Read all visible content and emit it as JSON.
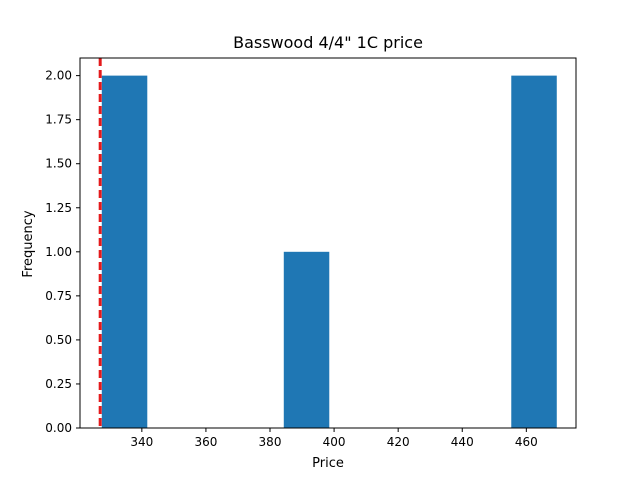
{
  "chart_data": {
    "type": "bar",
    "title": "Basswood 4/4\" 1C price",
    "xlabel": "Price",
    "ylabel": "Frequency",
    "xlim": [
      320.7,
      475.5
    ],
    "ylim": [
      0,
      2.1
    ],
    "xticks": [
      340,
      360,
      380,
      400,
      420,
      440,
      460
    ],
    "yticks": [
      0.0,
      0.25,
      0.5,
      0.75,
      1.0,
      1.25,
      1.5,
      1.75,
      2.0
    ],
    "bins": [
      {
        "x0": 327.5,
        "x1": 341.7,
        "count": 2
      },
      {
        "x0": 341.7,
        "x1": 355.9,
        "count": 0
      },
      {
        "x0": 355.9,
        "x1": 370.1,
        "count": 0
      },
      {
        "x0": 370.1,
        "x1": 384.3,
        "count": 0
      },
      {
        "x0": 384.3,
        "x1": 398.5,
        "count": 1
      },
      {
        "x0": 398.5,
        "x1": 412.7,
        "count": 0
      },
      {
        "x0": 412.7,
        "x1": 426.9,
        "count": 0
      },
      {
        "x0": 426.9,
        "x1": 441.1,
        "count": 0
      },
      {
        "x0": 441.1,
        "x1": 455.3,
        "count": 0
      },
      {
        "x0": 455.3,
        "x1": 469.5,
        "count": 2
      }
    ],
    "reference_line": {
      "x": 327.0,
      "style": "dashed",
      "color": "#e41a1c"
    },
    "bar_color": "#1f77b4",
    "grid": false,
    "legend": "none"
  }
}
